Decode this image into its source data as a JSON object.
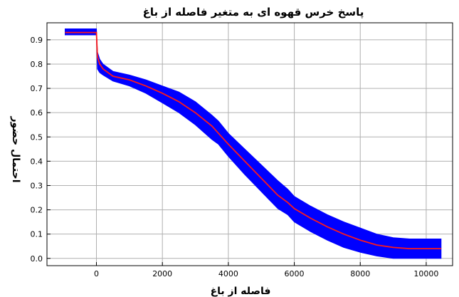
{
  "chart_data": {
    "type": "line",
    "title": "پاسخ خرس قهوه ای به متغیر فاصله از باغ",
    "xlabel": "فاصله از باغ",
    "ylabel": "احتمال حضور",
    "xlim": [
      -1500,
      10800
    ],
    "ylim": [
      -0.03,
      0.97
    ],
    "x_ticks": [
      0,
      2000,
      4000,
      6000,
      8000,
      10000
    ],
    "x_tick_labels": [
      "0",
      "2000",
      "4000",
      "6000",
      "8000",
      "10000"
    ],
    "y_ticks": [
      0.0,
      0.1,
      0.2,
      0.3,
      0.4,
      0.5,
      0.6,
      0.7,
      0.8,
      0.9
    ],
    "y_tick_labels": [
      "0.0",
      "0.1",
      "0.2",
      "0.3",
      "0.4",
      "0.5",
      "0.6",
      "0.7",
      "0.8",
      "0.9"
    ],
    "grid": true,
    "series": [
      {
        "x": [
          -950,
          0,
          30,
          100,
          200,
          500,
          1000,
          1500,
          2000,
          2500,
          3000,
          3500,
          3700,
          4000,
          4500,
          5000,
          5500,
          5800,
          6000,
          6500,
          7000,
          7500,
          8000,
          8500,
          9000,
          9500,
          10000,
          10450
        ],
        "y": [
          0.93,
          0.93,
          0.83,
          0.8,
          0.78,
          0.75,
          0.735,
          0.71,
          0.68,
          0.645,
          0.6,
          0.545,
          0.515,
          0.47,
          0.4,
          0.33,
          0.26,
          0.23,
          0.205,
          0.165,
          0.13,
          0.1,
          0.075,
          0.055,
          0.045,
          0.04,
          0.04,
          0.04
        ],
        "lower": [
          -950,
          0,
          30,
          100,
          200,
          500,
          1000,
          1500,
          2000,
          2500,
          3000,
          3500,
          3700,
          4000,
          4500,
          5000,
          5500,
          5800,
          6000,
          6500,
          7000,
          7500,
          8000,
          8500,
          9000,
          9500,
          10000,
          10450
        ],
        "y_lower": [
          0.92,
          0.92,
          0.78,
          0.765,
          0.755,
          0.73,
          0.71,
          0.68,
          0.64,
          0.6,
          0.55,
          0.49,
          0.47,
          0.42,
          0.345,
          0.275,
          0.205,
          0.18,
          0.15,
          0.11,
          0.075,
          0.045,
          0.025,
          0.01,
          0.0,
          0.0,
          0.0,
          0.0
        ],
        "y_upper": [
          0.945,
          0.945,
          0.85,
          0.82,
          0.8,
          0.77,
          0.755,
          0.735,
          0.71,
          0.685,
          0.645,
          0.59,
          0.565,
          0.515,
          0.45,
          0.385,
          0.32,
          0.285,
          0.255,
          0.215,
          0.18,
          0.15,
          0.125,
          0.1,
          0.085,
          0.08,
          0.08,
          0.08
        ],
        "line_color": "#ff1a1a",
        "band_color": "#0000ff"
      }
    ]
  },
  "colors": {
    "grid": "#b0b0b0",
    "axes": "#000000",
    "background": "#ffffff"
  }
}
